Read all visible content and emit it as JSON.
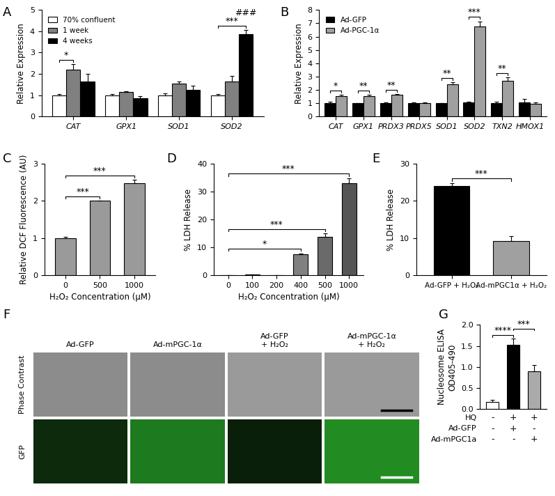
{
  "chart_data": [
    {
      "panel": "A",
      "type": "bar",
      "ylabel": "Relative Expression",
      "categories": [
        "CAT",
        "GPX1",
        "SOD1",
        "SOD2"
      ],
      "series": [
        {
          "name": "70% confluent",
          "color": "#ffffff",
          "values": [
            1.0,
            1.0,
            1.0,
            1.0
          ],
          "errors": [
            0.05,
            0.07,
            0.08,
            0.05
          ]
        },
        {
          "name": "1 week",
          "color": "#808080",
          "values": [
            2.2,
            1.15,
            1.55,
            1.65
          ],
          "errors": [
            0.25,
            0.05,
            0.1,
            0.25
          ]
        },
        {
          "name": "4 weeks",
          "color": "#000000",
          "values": [
            1.65,
            0.85,
            1.25,
            3.85
          ],
          "errors": [
            0.35,
            0.12,
            0.2,
            0.2
          ]
        }
      ],
      "ylim": [
        0,
        5
      ],
      "yticks": [
        0,
        1,
        2,
        3,
        4,
        5
      ],
      "legend": "upper left",
      "annotations": [
        {
          "text": "*",
          "category": "CAT",
          "series": [
            "70% confluent",
            "1 week"
          ]
        },
        {
          "text": "***",
          "category": "SOD2",
          "series": [
            "70% confluent",
            "4 weeks"
          ]
        },
        {
          "text": "###",
          "category": "SOD2",
          "series": [
            "4 weeks"
          ]
        }
      ]
    },
    {
      "panel": "B",
      "type": "bar",
      "ylabel": "Relative Expression",
      "categories": [
        "CAT",
        "GPX1",
        "PRDX3",
        "PRDX5",
        "SOD1",
        "SOD2",
        "TXN2",
        "HMOX1"
      ],
      "series": [
        {
          "name": "Ad-GFP",
          "color": "#000000",
          "values": [
            1.0,
            1.0,
            1.0,
            1.0,
            1.0,
            1.07,
            1.0,
            1.05
          ],
          "errors": [
            0.1,
            0.03,
            0.05,
            0.07,
            0.03,
            0.05,
            0.12,
            0.25
          ]
        },
        {
          "name": "Ad-PGC-1α",
          "color": "#a0a0a0",
          "values": [
            1.55,
            1.55,
            1.62,
            1.02,
            2.42,
            6.75,
            2.7,
            0.95
          ],
          "errors": [
            0.1,
            0.08,
            0.07,
            0.02,
            0.15,
            0.4,
            0.25,
            0.1
          ]
        }
      ],
      "ylim": [
        0,
        8
      ],
      "yticks": [
        0,
        1,
        2,
        3,
        4,
        5,
        6,
        7,
        8
      ],
      "legend": "upper left",
      "annotations": [
        {
          "text": "*",
          "category": "CAT",
          "series": [
            "Ad-GFP",
            "Ad-PGC-1α"
          ]
        },
        {
          "text": "**",
          "category": "GPX1",
          "series": [
            "Ad-GFP",
            "Ad-PGC-1α"
          ]
        },
        {
          "text": "**",
          "category": "PRDX3",
          "series": [
            "Ad-GFP",
            "Ad-PGC-1α"
          ]
        },
        {
          "text": "**",
          "category": "SOD1",
          "series": [
            "Ad-GFP",
            "Ad-PGC-1α"
          ]
        },
        {
          "text": "***",
          "category": "SOD2",
          "series": [
            "Ad-GFP",
            "Ad-PGC-1α"
          ]
        },
        {
          "text": "**",
          "category": "TXN2",
          "series": [
            "Ad-GFP",
            "Ad-PGC-1α"
          ]
        }
      ]
    },
    {
      "panel": "C",
      "type": "bar",
      "ylabel": "Relative DCF Fluorescence (AU)",
      "xlabel": "H₂O₂ Concentration (μM)",
      "categories": [
        "0",
        "500",
        "1000"
      ],
      "values": [
        1.0,
        2.0,
        2.48
      ],
      "errors": [
        0.04,
        0.0,
        0.08
      ],
      "color": "#9a9a9a",
      "ylim": [
        0,
        3
      ],
      "yticks": [
        0,
        1,
        2,
        3
      ],
      "annotations": [
        {
          "text": "***",
          "between": [
            0,
            1
          ]
        },
        {
          "text": "***",
          "between": [
            0,
            2
          ]
        }
      ]
    },
    {
      "panel": "D",
      "type": "bar",
      "ylabel": "% LDH Release",
      "xlabel": "H₂O₂ Concentration (μM)",
      "categories": [
        "0",
        "100",
        "200",
        "400",
        "500",
        "1000"
      ],
      "values": [
        0,
        0.2,
        0,
        7.5,
        13.7,
        33
      ],
      "errors": [
        0,
        0.1,
        0,
        0.4,
        1.2,
        1.8
      ],
      "colors": [
        "#bbbbbb",
        "#aaaaaa",
        "#999999",
        "#808080",
        "#6a6a6a",
        "#555555"
      ],
      "ylim": [
        0,
        40
      ],
      "yticks": [
        0,
        10,
        20,
        30,
        40
      ],
      "annotations": [
        {
          "text": "*",
          "between": [
            0,
            3
          ]
        },
        {
          "text": "***",
          "between": [
            0,
            4
          ]
        },
        {
          "text": "***",
          "between": [
            0,
            5
          ]
        }
      ]
    },
    {
      "panel": "E",
      "type": "bar",
      "ylabel": "% LDH Release",
      "categories": [
        "Ad-GFP + H₂O₂",
        "Ad-mPGC1α + H₂O₂"
      ],
      "values": [
        24,
        9.2
      ],
      "errors": [
        0.8,
        1.3
      ],
      "colors": [
        "#000000",
        "#a0a0a0"
      ],
      "ylim": [
        0,
        30
      ],
      "yticks": [
        0,
        10,
        20,
        30
      ],
      "annotations": [
        {
          "text": "***",
          "between": [
            0,
            1
          ]
        }
      ]
    },
    {
      "panel": "F",
      "type": "image_grid",
      "columns": [
        "Ad-GFP",
        "Ad-mPGC-1α",
        "Ad-GFP\n+ H₂O₂",
        "Ad-mPGC-1α\n+ H₂O₂"
      ],
      "rows": [
        "Phase Contrast",
        "GFP"
      ]
    },
    {
      "panel": "G",
      "type": "bar",
      "ylabel": "Nucleosome ELISA\nOD405-490",
      "categories": [
        null,
        null,
        null
      ],
      "values": [
        0.18,
        1.52,
        0.9
      ],
      "errors": [
        0.04,
        0.15,
        0.15
      ],
      "colors": [
        "#ffffff",
        "#000000",
        "#aaaaaa"
      ],
      "tick_labels": "y",
      "ylim": [
        0,
        2.0
      ],
      "yticks": [
        {
          "value": 0,
          "label": "0.0"
        },
        {
          "value": 0.5,
          "label": "0.5"
        },
        {
          "value": 1.0,
          "label": "1.0"
        },
        {
          "value": 1.5,
          "label": "1.5"
        },
        {
          "value": 2.0,
          "label": "2.0"
        }
      ],
      "annotations": [
        {
          "text": "****",
          "between": [
            0,
            1
          ]
        },
        {
          "text": "***",
          "between": [
            1,
            2
          ]
        }
      ],
      "table": [
        {
          "name": "HQ",
          "marks": [
            "-",
            "+",
            "+"
          ]
        },
        {
          "name": "Ad-GFP",
          "marks": [
            "-",
            "+",
            "-"
          ]
        },
        {
          "name": "Ad-mPGC1a",
          "marks": [
            "-",
            "-",
            "+"
          ]
        }
      ]
    }
  ]
}
